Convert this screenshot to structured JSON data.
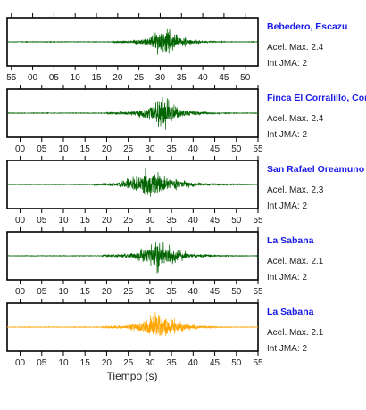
{
  "chart_data": {
    "type": "line",
    "xlabel": "Tiempo (s)",
    "ylabel": "",
    "grid": false,
    "panels": [
      {
        "station": "Bebedero, Escazu",
        "accel_label": "Acel. Max. 2.4",
        "intensity_label": "Int JMA: 2",
        "color": "#006400",
        "tick_values": [
          55,
          0,
          5,
          10,
          15,
          20,
          25,
          30,
          35,
          40,
          45,
          50
        ],
        "tick_labels": [
          "55",
          "00",
          "05",
          "10",
          "15",
          "20",
          "25",
          "30",
          "35",
          "40",
          "45",
          "50"
        ],
        "show_tick_labels": true,
        "xlim": [
          54,
          53
        ],
        "onset": 19,
        "peak": 31,
        "end": 47,
        "amplitude": 0.85
      },
      {
        "station": "Finca El Corralillo, Coro",
        "accel_label": "Acel. Max. 2.4",
        "intensity_label": "Int JMA: 2",
        "color": "#006400",
        "tick_values": [
          0,
          5,
          10,
          15,
          20,
          25,
          30,
          35,
          40,
          45,
          50,
          55
        ],
        "tick_labels": [
          "00",
          "05",
          "10",
          "15",
          "20",
          "25",
          "30",
          "35",
          "40",
          "45",
          "50",
          "55"
        ],
        "show_tick_labels": true,
        "xlim": [
          -3,
          55
        ],
        "onset": 20,
        "peak": 33,
        "end": 50,
        "amplitude": 0.85
      },
      {
        "station": "San Rafael Oreamuno",
        "accel_label": "Acel. Max. 2.3",
        "intensity_label": "Int JMA: 2",
        "color": "#006400",
        "tick_values": [
          0,
          5,
          10,
          15,
          20,
          25,
          30,
          35,
          40,
          45,
          50,
          55
        ],
        "tick_labels": [
          "00",
          "05",
          "10",
          "15",
          "20",
          "25",
          "30",
          "35",
          "40",
          "45",
          "50",
          "55"
        ],
        "show_tick_labels": true,
        "xlim": [
          -3,
          55
        ],
        "onset": 17,
        "peak": 29.5,
        "end": 54,
        "amplitude": 0.9
      },
      {
        "station": "La Sabana",
        "accel_label": "Acel. Max. 2.1",
        "intensity_label": "Int JMA: 2",
        "color": "#006400",
        "tick_values": [
          0,
          5,
          10,
          15,
          20,
          25,
          30,
          35,
          40,
          45,
          50,
          55
        ],
        "tick_labels": [
          "00",
          "05",
          "10",
          "15",
          "20",
          "25",
          "30",
          "35",
          "40",
          "45",
          "50",
          "55"
        ],
        "show_tick_labels": true,
        "xlim": [
          -3,
          55
        ],
        "onset": 19,
        "peak": 32,
        "end": 52,
        "amplitude": 0.85
      },
      {
        "station": "La Sabana",
        "accel_label": "Acel. Max. 2.1",
        "intensity_label": "Int JMA: 2",
        "color": "#ffa500",
        "tick_values": [
          0,
          5,
          10,
          15,
          20,
          25,
          30,
          35,
          40,
          45,
          50,
          55
        ],
        "tick_labels": [
          "00",
          "05",
          "10",
          "15",
          "20",
          "25",
          "30",
          "35",
          "40",
          "45",
          "50",
          "55"
        ],
        "show_tick_labels": true,
        "xlim": [
          -3,
          55
        ],
        "onset": 19,
        "peak": 32,
        "end": 52,
        "amplitude": 0.85
      }
    ]
  }
}
